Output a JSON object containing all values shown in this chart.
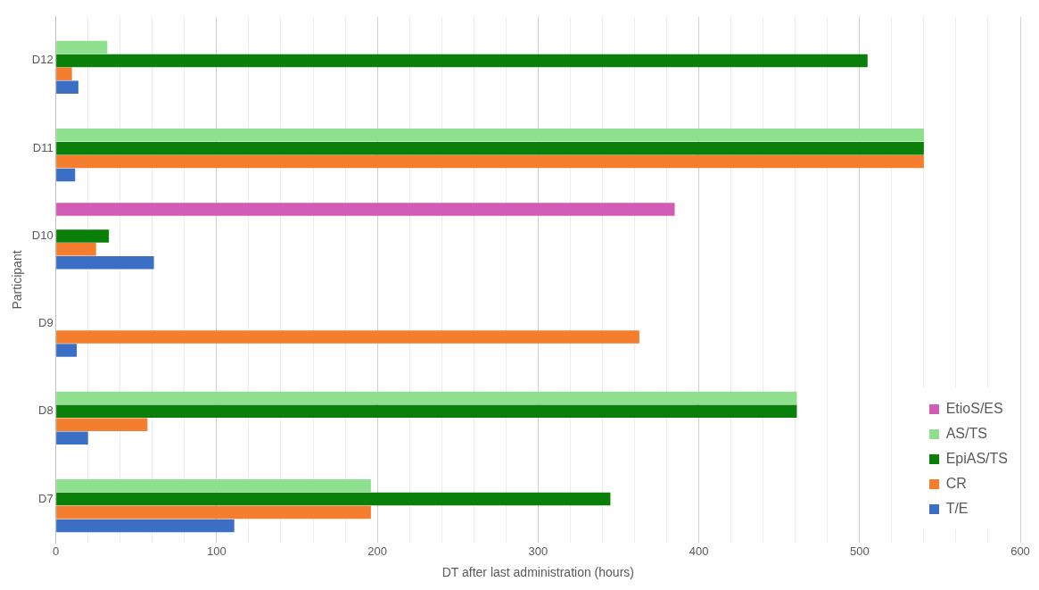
{
  "chart_data": {
    "type": "bar",
    "orientation": "horizontal",
    "xlabel": "DT after last administration (hours)",
    "ylabel": "Participant",
    "categories": [
      "D12",
      "D11",
      "D10",
      "D9",
      "D8",
      "D7"
    ],
    "series": [
      {
        "name": "EtioS/ES",
        "color": "#d25bb5",
        "values": [
          null,
          null,
          385,
          null,
          null,
          null
        ]
      },
      {
        "name": "AS/TS",
        "color": "#8ee08e",
        "values": [
          32,
          540,
          null,
          null,
          461,
          196
        ]
      },
      {
        "name": "EpiAS/TS",
        "color": "#0a800a",
        "values": [
          505,
          540,
          33,
          null,
          461,
          345
        ]
      },
      {
        "name": "CR",
        "color": "#f47d2e",
        "values": [
          10,
          540,
          25,
          363,
          57,
          196
        ]
      },
      {
        "name": "T/E",
        "color": "#3b6fc6",
        "values": [
          14,
          12,
          61,
          13,
          20,
          111
        ]
      }
    ],
    "xlim": [
      0,
      600
    ],
    "xticks": [
      0,
      {
        "value": 20,
        "label": null
      },
      {
        "value": 40,
        "label": null
      },
      {
        "value": 60,
        "label": null
      },
      {
        "value": 80,
        "label": null
      },
      100,
      {
        "value": 120,
        "label": null
      },
      {
        "value": 140,
        "label": null
      },
      {
        "value": 160,
        "label": null
      },
      {
        "value": 180,
        "label": null
      },
      200,
      {
        "value": 220,
        "label": null
      },
      {
        "value": 240,
        "label": null
      },
      {
        "value": 260,
        "label": null
      },
      {
        "value": 280,
        "label": null
      },
      300,
      {
        "value": 320,
        "label": null
      },
      {
        "value": 340,
        "label": null
      },
      {
        "value": 360,
        "label": null
      },
      {
        "value": 380,
        "label": null
      },
      400,
      {
        "value": 420,
        "label": null
      },
      {
        "value": 440,
        "label": null
      },
      {
        "value": 460,
        "label": null
      },
      {
        "value": 480,
        "label": null
      },
      500,
      {
        "value": 520,
        "label": null
      },
      {
        "value": 540,
        "label": null
      },
      {
        "value": 560,
        "label": null
      },
      {
        "value": 580,
        "label": null
      },
      600
    ],
    "grid": "x",
    "legend": "bottom right"
  }
}
